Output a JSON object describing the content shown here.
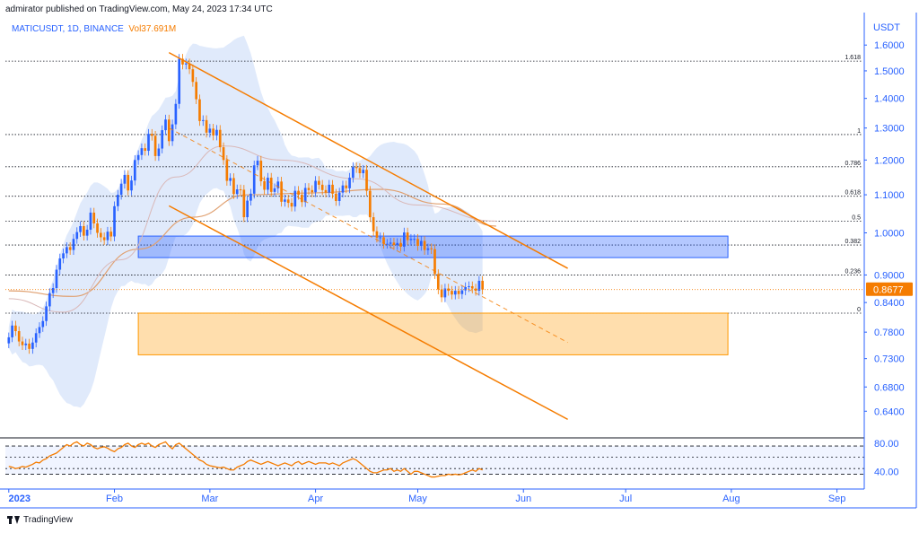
{
  "header": {
    "attribution": "admirator published on TradingView.com, May 24, 2023 17:34 UTC"
  },
  "symbol": {
    "name": "MATICUSDT, 1D, BINANCE",
    "vol": "Vol37.691M"
  },
  "footer": {
    "brand": "TradingView"
  },
  "colors": {
    "accent": "#2962ff",
    "orange": "#f57c00",
    "up": "#2962ff",
    "down": "#f57c00",
    "blue_zone": "#2962ff",
    "orange_zone": "#ff9800"
  },
  "chart_data": [
    {
      "type": "candlestick",
      "title": "",
      "currency_label": "USDT",
      "y_scale": "log",
      "ylim": [
        0.6,
        1.72
      ],
      "y_ticks": [
        1.6,
        1.5,
        1.4,
        1.3,
        1.2,
        1.1,
        1.0,
        0.9,
        0.84,
        0.78,
        0.73,
        0.68,
        0.64
      ],
      "y_tick_labels": [
        "1.6000",
        "1.5000",
        "1.4000",
        "1.3000",
        "1.2000",
        "1.1000",
        "1.0000",
        "0.9000",
        "0.8400",
        "0.7800",
        "0.7300",
        "0.6800",
        "0.6400"
      ],
      "x_range": [
        "2022-12-31",
        "2023-09-09"
      ],
      "x_ticks": [
        {
          "date": "2023-01-01",
          "label": "2023"
        },
        {
          "date": "2023-02-01",
          "label": "Feb"
        },
        {
          "date": "2023-03-01",
          "label": "Mar"
        },
        {
          "date": "2023-04-01",
          "label": "Apr"
        },
        {
          "date": "2023-05-01",
          "label": "May"
        },
        {
          "date": "2023-06-01",
          "label": "Jun"
        },
        {
          "date": "2023-07-01",
          "label": "Jul"
        },
        {
          "date": "2023-08-01",
          "label": "Aug"
        },
        {
          "date": "2023-09-01",
          "label": "Sep"
        }
      ],
      "last_price": 0.8677,
      "last_price_label": "0.8677",
      "start_date": "2023-01-01",
      "closes": [
        0.77,
        0.793,
        0.782,
        0.762,
        0.755,
        0.758,
        0.748,
        0.76,
        0.778,
        0.79,
        0.802,
        0.832,
        0.86,
        0.871,
        0.912,
        0.938,
        0.95,
        0.965,
        0.958,
        0.985,
        1.002,
        1.017,
        0.993,
        1.008,
        1.052,
        1.024,
        1.0,
        0.989,
        0.982,
        1.003,
        0.991,
        1.069,
        1.1,
        1.131,
        1.156,
        1.112,
        1.14,
        1.2,
        1.215,
        1.236,
        1.228,
        1.281,
        1.275,
        1.212,
        1.235,
        1.293,
        1.328,
        1.258,
        1.312,
        1.381,
        1.546,
        1.524,
        1.528,
        1.506,
        1.459,
        1.397,
        1.323,
        1.326,
        1.285,
        1.298,
        1.276,
        1.294,
        1.239,
        1.2,
        1.139,
        1.147,
        1.102,
        1.115,
        1.114,
        1.04,
        1.084,
        1.103,
        1.184,
        1.198,
        1.138,
        1.114,
        1.148,
        1.108,
        1.118,
        1.137,
        1.081,
        1.087,
        1.078,
        1.068,
        1.111,
        1.1,
        1.08,
        1.119,
        1.113,
        1.107,
        1.139,
        1.128,
        1.113,
        1.106,
        1.128,
        1.103,
        1.083,
        1.106,
        1.126,
        1.118,
        1.148,
        1.179,
        1.176,
        1.161,
        1.171,
        1.111,
        1.04,
        1.004,
        0.988,
        0.989,
        0.973,
        0.973,
        0.976,
        0.97,
        0.975,
        0.966,
        1.001,
        0.982,
        0.985,
        0.985,
        0.968,
        0.98,
        0.958,
        0.962,
        0.96,
        0.902,
        0.868,
        0.851,
        0.87,
        0.865,
        0.857,
        0.865,
        0.858,
        0.866,
        0.873,
        0.875,
        0.87,
        0.865,
        0.887,
        0.8677
      ],
      "fib_levels": [
        {
          "label": "1.618",
          "price": 1.537
        },
        {
          "label": "1",
          "price": 1.279
        },
        {
          "label": "0.786",
          "price": 1.18
        },
        {
          "label": "0.618",
          "price": 1.096
        },
        {
          "label": "0.5",
          "price": 1.03
        },
        {
          "label": "0.382",
          "price": 0.97
        },
        {
          "label": "0.236",
          "price": 0.9
        },
        {
          "label": "0",
          "price": 0.818
        }
      ],
      "zones": [
        {
          "name": "blue-zone",
          "price_top": 0.992,
          "price_bottom": 0.94,
          "from": "2023-02-08",
          "to": "2023-07-31"
        },
        {
          "name": "orange-zone",
          "price_top": 0.818,
          "price_bottom": 0.737,
          "from": "2023-02-08",
          "to": "2023-07-31"
        }
      ],
      "channel_lines": [
        {
          "name": "upper-channel-line",
          "from": [
            "2023-02-17",
            1.57
          ],
          "to": [
            "2023-06-14",
            0.915
          ]
        },
        {
          "name": "lower-channel-line",
          "from": [
            "2023-02-17",
            1.07
          ],
          "to": [
            "2023-06-14",
            0.627
          ]
        },
        {
          "name": "mid-channel-line",
          "from": [
            "2023-02-17",
            1.3
          ],
          "to": [
            "2023-06-14",
            0.76
          ]
        }
      ],
      "moving_averages": [
        {
          "name": "ma-orange",
          "points": [
            [
              "2023-01-01",
              0.865
            ],
            [
              "2023-01-20",
              0.853
            ],
            [
              "2023-02-08",
              0.96
            ],
            [
              "2023-02-24",
              1.04
            ],
            [
              "2023-03-12",
              1.1
            ],
            [
              "2023-03-31",
              1.105
            ],
            [
              "2023-04-20",
              1.115
            ],
            [
              "2023-05-08",
              1.075
            ],
            [
              "2023-05-24",
              1.017
            ]
          ]
        },
        {
          "name": "ma-light",
          "points": [
            [
              "2023-01-01",
              0.848
            ],
            [
              "2023-01-17",
              0.82
            ],
            [
              "2023-02-03",
              0.935
            ],
            [
              "2023-02-19",
              1.15
            ],
            [
              "2023-03-05",
              1.243
            ],
            [
              "2023-03-22",
              1.2
            ],
            [
              "2023-04-13",
              1.145
            ],
            [
              "2023-05-01",
              1.072
            ],
            [
              "2023-05-24",
              1.03
            ]
          ]
        }
      ]
    },
    {
      "type": "line",
      "title": "",
      "y_ticks": [
        80,
        40
      ],
      "y_tick_labels": [
        "80.00",
        "40.00"
      ],
      "ylim": [
        20,
        85
      ],
      "reference_levels": [
        76,
        60,
        44,
        36
      ],
      "start_date": "2023-01-01",
      "values": [
        47,
        46,
        44,
        45,
        47,
        46,
        48,
        50,
        53,
        52,
        56,
        58,
        62,
        64,
        66,
        70,
        74,
        78,
        76,
        80,
        82,
        78,
        76,
        80,
        78,
        74,
        72,
        74,
        75,
        73,
        70,
        68,
        72,
        74,
        78,
        80,
        76,
        74,
        78,
        80,
        78,
        80,
        76,
        74,
        78,
        80,
        82,
        76,
        72,
        78,
        80,
        76,
        72,
        68,
        64,
        60,
        56,
        54,
        50,
        48,
        47,
        46,
        45,
        46,
        44,
        42,
        42,
        46,
        48,
        50,
        54,
        56,
        54,
        52,
        50,
        52,
        54,
        52,
        50,
        48,
        50,
        52,
        50,
        48,
        52,
        54,
        50,
        52,
        54,
        52,
        50,
        52,
        52,
        52,
        50,
        52,
        50,
        48,
        52,
        54,
        56,
        58,
        56,
        52,
        48,
        44,
        40,
        38,
        38,
        40,
        42,
        42,
        44,
        40,
        42,
        40,
        44,
        40,
        36,
        40,
        40,
        38,
        36,
        34,
        32,
        32,
        33,
        34,
        34,
        36,
        35,
        36,
        35,
        36,
        38,
        40,
        42,
        40,
        44,
        42
      ]
    }
  ]
}
